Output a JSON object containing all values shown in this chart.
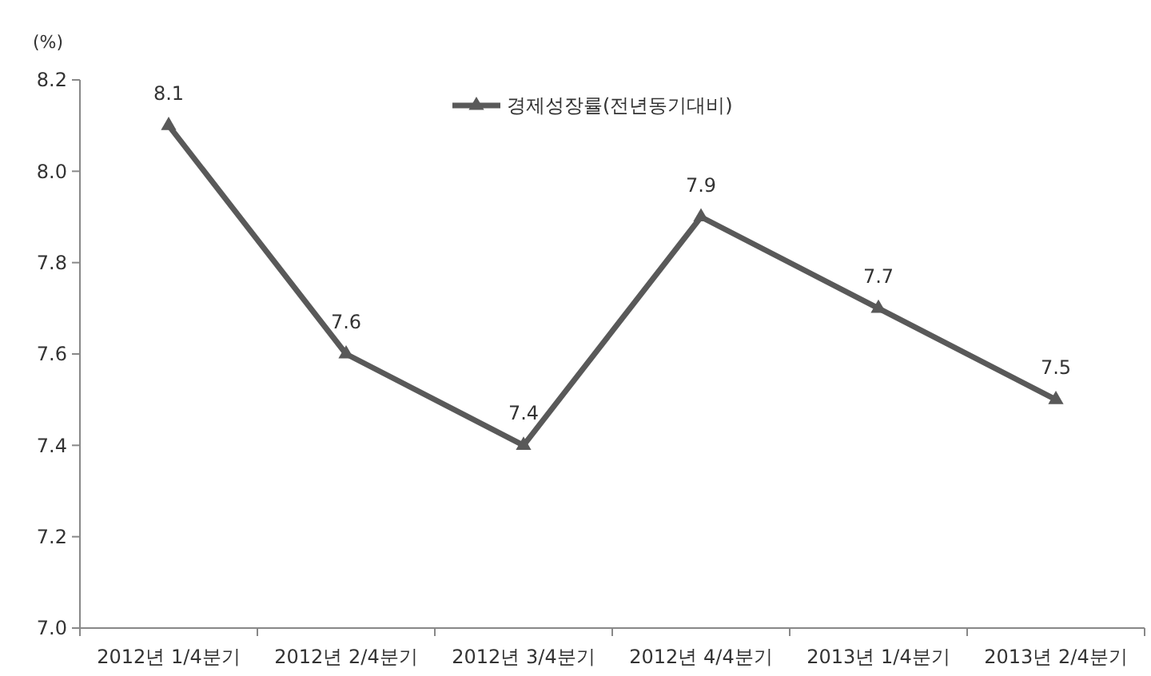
{
  "chart_data": {
    "type": "line",
    "ylabel": "(%)",
    "categories": [
      "2012년 1/4분기",
      "2012년 2/4분기",
      "2012년 3/4분기",
      "2012년 4/4분기",
      "2013년 1/4분기",
      "2013년 2/4분기"
    ],
    "series": [
      {
        "name": "경제성장률(전년동기대비)",
        "color": "#595959",
        "values": [
          8.1,
          7.6,
          7.4,
          7.9,
          7.7,
          7.5
        ]
      }
    ],
    "ylim": [
      7.0,
      8.2
    ],
    "yticks": [
      {
        "value": 7.0,
        "label": "7.0"
      },
      {
        "value": 7.2,
        "label": "7.2"
      },
      {
        "value": 7.4,
        "label": "7.4"
      },
      {
        "value": 7.6,
        "label": "7.6"
      },
      {
        "value": 7.8,
        "label": "7.8"
      },
      {
        "value": 8.0,
        "label": "8.0"
      },
      {
        "value": 8.2,
        "label": "8.2"
      }
    ],
    "data_labels": true,
    "marker": "triangle",
    "legend": "top",
    "grid": false
  }
}
